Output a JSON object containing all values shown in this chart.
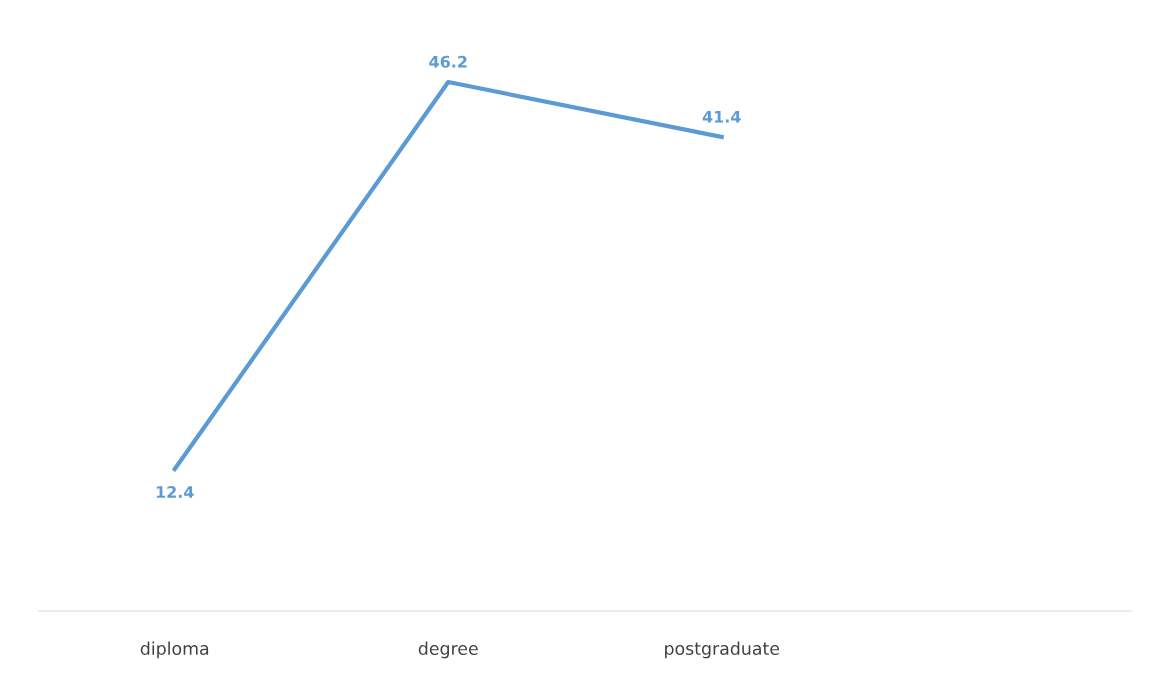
{
  "chart_data": {
    "type": "line",
    "categories": [
      "diploma",
      "degree",
      "postgraduate",
      null
    ],
    "series": [
      {
        "color": "#5b9bd5",
        "values": [
          12.4,
          46.2,
          41.4,
          null
        ]
      }
    ],
    "data_labels": true,
    "grid": false,
    "legend": false,
    "line_style": "solid"
  }
}
